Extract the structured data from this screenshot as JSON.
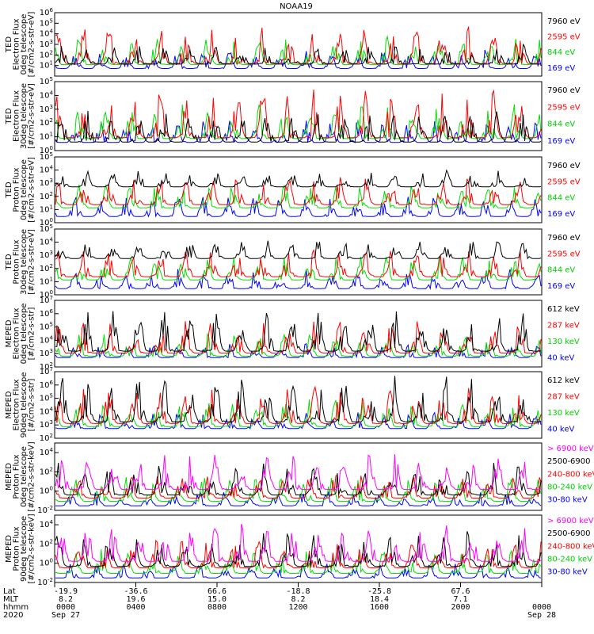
{
  "title": "NOAA19",
  "colors": {
    "black": "#000000",
    "red": "#ff0000",
    "green": "#00e000",
    "blue": "#0000ff",
    "magenta": "#ff00ff"
  },
  "chart_data": [
    {
      "type": "line",
      "ylabel": [
        "TED",
        "Electron Flux",
        "0deg telescope",
        "[#/cm2-s-str-eV]"
      ],
      "y_ticks": [
        "10^1",
        "10^2",
        "10^3",
        "10^4",
        "10^5",
        "10^6"
      ],
      "y_min_exp": 0,
      "y_max_exp": 6,
      "bands": [
        [
          0.8,
          3
        ],
        [
          0.5,
          5
        ],
        [
          0.6,
          3.8
        ],
        [
          0.4,
          2.5
        ]
      ],
      "series": [
        {
          "name": "7960 eV",
          "color": "#000000"
        },
        {
          "name": "2595 eV",
          "color": "#ff0000"
        },
        {
          "name": "844 eV",
          "color": "#00e000"
        },
        {
          "name": "169 eV",
          "color": "#0000ff"
        }
      ]
    },
    {
      "type": "line",
      "ylabel": [
        "TED",
        "Electron Flux",
        "30deg telescope",
        "[#/cm2-s-str-eV]"
      ],
      "y_ticks": [
        "10^0",
        "10^1",
        "10^2",
        "10^3",
        "10^4",
        "10^5"
      ],
      "y_min_exp": 0,
      "y_max_exp": 5,
      "bands": [
        [
          0.2,
          3
        ],
        [
          0.3,
          4.5
        ],
        [
          0.4,
          3.5
        ],
        [
          0.3,
          2.2
        ]
      ],
      "series": [
        {
          "name": "7960 eV",
          "color": "#000000"
        },
        {
          "name": "2595 eV",
          "color": "#ff0000"
        },
        {
          "name": "844 eV",
          "color": "#00e000"
        },
        {
          "name": "169 eV",
          "color": "#0000ff"
        }
      ]
    },
    {
      "type": "line",
      "ylabel": [
        "TED",
        "Proton Flux",
        "0deg telescope",
        "[#/cm2-s-str-eV]"
      ],
      "y_ticks": [
        "10^0",
        "10^1",
        "10^2",
        "10^3",
        "10^4",
        "10^5"
      ],
      "y_min_exp": 0,
      "y_max_exp": 5,
      "bands": [
        [
          2.5,
          4
        ],
        [
          1,
          3.5
        ],
        [
          0.8,
          3
        ],
        [
          0.2,
          2
        ]
      ],
      "series": [
        {
          "name": "7960 eV",
          "color": "#000000"
        },
        {
          "name": "2595 eV",
          "color": "#ff0000"
        },
        {
          "name": "844 eV",
          "color": "#00e000"
        },
        {
          "name": "169 eV",
          "color": "#0000ff"
        }
      ]
    },
    {
      "type": "line",
      "ylabel": [
        "TED",
        "Proton Flux",
        "30deg telescope",
        "[#/cm2-s-str-eV]"
      ],
      "y_ticks": [
        "10^0",
        "10^1",
        "10^2",
        "10^3",
        "10^4",
        "10^5"
      ],
      "y_min_exp": 0,
      "y_max_exp": 5,
      "bands": [
        [
          2.5,
          4.2
        ],
        [
          1,
          3.5
        ],
        [
          0.8,
          3
        ],
        [
          0.2,
          2
        ]
      ],
      "series": [
        {
          "name": "7960 eV",
          "color": "#000000"
        },
        {
          "name": "2595 eV",
          "color": "#ff0000"
        },
        {
          "name": "844 eV",
          "color": "#00e000"
        },
        {
          "name": "169 eV",
          "color": "#0000ff"
        }
      ]
    },
    {
      "type": "line",
      "ylabel": [
        "MEPED",
        "Electron Flux",
        "0deg telescope",
        "[#/cm2-s-str]"
      ],
      "y_ticks": [
        "10^2",
        "10^3",
        "10^4",
        "10^5",
        "10^6",
        "10^7"
      ],
      "y_min_exp": 2,
      "y_max_exp": 7,
      "bands": [
        [
          2.6,
          6.5
        ],
        [
          2.6,
          5.5
        ],
        [
          2.5,
          4.5
        ],
        [
          2.5,
          3.8
        ]
      ],
      "series": [
        {
          "name": "612 keV",
          "color": "#000000"
        },
        {
          "name": "287 keV",
          "color": "#ff0000"
        },
        {
          "name": "130 keV",
          "color": "#00e000"
        },
        {
          "name": "40 keV",
          "color": "#0000ff"
        }
      ]
    },
    {
      "type": "line",
      "ylabel": [
        "MEPED",
        "Electron Flux",
        "90deg telescope",
        "[#/cm2-s-str]"
      ],
      "y_ticks": [
        "10^2",
        "10^3",
        "10^4",
        "10^5",
        "10^6",
        "10^7"
      ],
      "y_min_exp": 2,
      "y_max_exp": 7,
      "bands": [
        [
          2.6,
          6.8
        ],
        [
          2.6,
          6
        ],
        [
          2.5,
          5
        ],
        [
          2.5,
          4
        ]
      ],
      "series": [
        {
          "name": "612 keV",
          "color": "#000000"
        },
        {
          "name": "287 keV",
          "color": "#ff0000"
        },
        {
          "name": "130 keV",
          "color": "#00e000"
        },
        {
          "name": "40 keV",
          "color": "#0000ff"
        }
      ]
    },
    {
      "type": "line",
      "ylabel": [
        "MEPED",
        "Proton Flux",
        "0deg telescope",
        "[#/cm2-s-str-keV]"
      ],
      "y_ticks": [
        "10^-2",
        "10^0",
        "10^2",
        "10^4"
      ],
      "y_min_exp": -2,
      "y_max_exp": 5,
      "bands": [
        [
          -0.5,
          4
        ],
        [
          -1,
          3
        ],
        [
          -1.2,
          2
        ],
        [
          -1.5,
          1.5
        ],
        [
          -1.8,
          0
        ]
      ],
      "series": [
        {
          "name": "> 6900 keV",
          "color": "#ff00ff"
        },
        {
          "name": "2500-6900",
          "color": "#000000"
        },
        {
          "name": "240-800 keV",
          "color": "#ff0000"
        },
        {
          "name": "80-240 keV",
          "color": "#00e000"
        },
        {
          "name": "30-80 keV",
          "color": "#0000ff"
        }
      ]
    },
    {
      "type": "line",
      "ylabel": [
        "MEPED",
        "Proton Flux",
        "90deg telescope",
        "[#/cm2-s-str-keV]"
      ],
      "y_ticks": [
        "10^-2",
        "10^0",
        "10^2",
        "10^4"
      ],
      "y_min_exp": -2,
      "y_max_exp": 5,
      "bands": [
        [
          -0.5,
          4.2
        ],
        [
          -1,
          3.5
        ],
        [
          -1,
          2.5
        ],
        [
          -1.5,
          1.5
        ],
        [
          -1.8,
          0
        ]
      ],
      "series": [
        {
          "name": "> 6900 keV",
          "color": "#ff00ff"
        },
        {
          "name": "2500-6900",
          "color": "#000000"
        },
        {
          "name": "240-800 keV",
          "color": "#ff0000"
        },
        {
          "name": "80-240 keV",
          "color": "#00e000"
        },
        {
          "name": "30-80 keV",
          "color": "#0000ff"
        }
      ]
    }
  ],
  "x_axis": {
    "row_labels": [
      "Lat",
      "MLT",
      "hhmm",
      "2020"
    ],
    "ticks": [
      {
        "lat": "-19.9",
        "mlt": "8.2",
        "hhmm": "0000",
        "date": "Sep 27"
      },
      {
        "lat": "-36.6",
        "mlt": "19.6",
        "hhmm": "0400",
        "date": ""
      },
      {
        "lat": "66.6",
        "mlt": "15.0",
        "hhmm": "0800",
        "date": ""
      },
      {
        "lat": "-18.8",
        "mlt": "8.2",
        "hhmm": "1200",
        "date": ""
      },
      {
        "lat": "-25.8",
        "mlt": "18.4",
        "hhmm": "1600",
        "date": ""
      },
      {
        "lat": "67.6",
        "mlt": "7.1",
        "hhmm": "2000",
        "date": ""
      },
      {
        "lat": "",
        "mlt": "",
        "hhmm": "0000",
        "date": "Sep 28"
      }
    ]
  }
}
